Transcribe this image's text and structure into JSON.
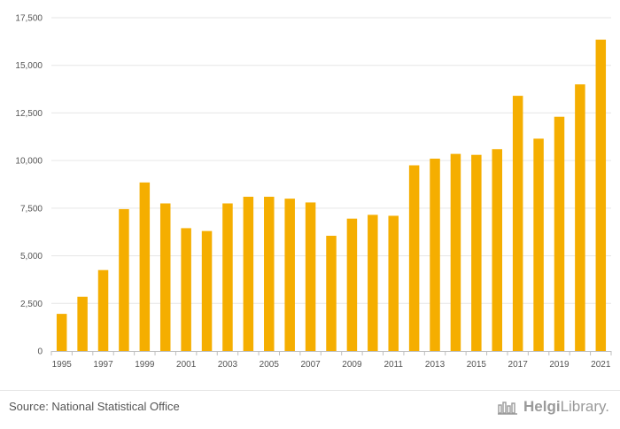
{
  "chart_data": {
    "type": "bar",
    "title": "",
    "xlabel": "",
    "ylabel": "",
    "ylim": [
      0,
      17500
    ],
    "yticks": [
      0,
      2500,
      5000,
      7500,
      10000,
      12500,
      15000,
      17500
    ],
    "ytick_labels": [
      "0",
      "2,500",
      "5,000",
      "7,500",
      "10,000",
      "12,500",
      "15,000",
      "17,500"
    ],
    "categories": [
      "1995",
      "1996",
      "1997",
      "1998",
      "1999",
      "2000",
      "2001",
      "2002",
      "2003",
      "2004",
      "2005",
      "2006",
      "2007",
      "2008",
      "2009",
      "2010",
      "2011",
      "2012",
      "2013",
      "2014",
      "2015",
      "2016",
      "2017",
      "2018",
      "2019",
      "2020",
      "2021"
    ],
    "xtick_labels": [
      "1995",
      "",
      "1997",
      "",
      "1999",
      "",
      "2001",
      "",
      "2003",
      "",
      "2005",
      "",
      "2007",
      "",
      "2009",
      "",
      "2011",
      "",
      "2013",
      "",
      "2015",
      "",
      "2017",
      "",
      "2019",
      "",
      "2021"
    ],
    "values": [
      1950,
      2850,
      4250,
      7450,
      8850,
      7750,
      6450,
      6300,
      7750,
      8100,
      8100,
      8000,
      7800,
      6050,
      6950,
      7150,
      7100,
      9750,
      10100,
      10350,
      10300,
      10600,
      13400,
      11150,
      12300,
      14000,
      16350
    ],
    "bar_color": "#f5ae00",
    "grid": true
  },
  "footer": {
    "source": "Source: National Statistical Office",
    "brand_first": "Helgi",
    "brand_second": "Library."
  },
  "colors": {
    "bar": "#f5ae00",
    "grid": "#e6e6e6",
    "axis": "#bfbfbf",
    "text": "#555555"
  },
  "icons": {
    "brand_logo": "helgi-library-logo-icon"
  }
}
